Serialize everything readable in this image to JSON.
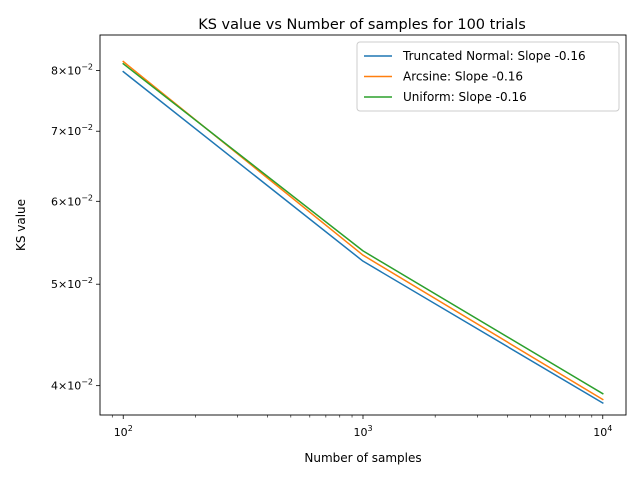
{
  "chart_data": {
    "type": "line",
    "title": "KS value vs Number of samples for 100 trials",
    "xlabel": "Number of samples",
    "ylabel": "KS value",
    "xscale": "log",
    "yscale": "log",
    "xlim": [
      80,
      12500
    ],
    "ylim": [
      0.0375,
      0.0865
    ],
    "x": [
      100,
      1000,
      10000
    ],
    "x_ticks": [
      {
        "value": 100,
        "base": "10",
        "exp": "2"
      },
      {
        "value": 1000,
        "base": "10",
        "exp": "3"
      },
      {
        "value": 10000,
        "base": "10",
        "exp": "4"
      }
    ],
    "y_ticks": [
      {
        "value": 0.04,
        "mant": "4",
        "base": "10",
        "exp": "−2"
      },
      {
        "value": 0.05,
        "mant": "5",
        "base": "10",
        "exp": "−2"
      },
      {
        "value": 0.06,
        "mant": "6",
        "base": "10",
        "exp": "−2"
      },
      {
        "value": 0.07,
        "mant": "7",
        "base": "10",
        "exp": "−2"
      },
      {
        "value": 0.08,
        "mant": "8",
        "base": "10",
        "exp": "−2"
      }
    ],
    "grid": false,
    "legend_position": "top-right",
    "series": [
      {
        "name": "Truncated Normal: Slope -0.16",
        "color": "#1f77b4",
        "values": [
          0.0798,
          0.0526,
          0.0385
        ]
      },
      {
        "name": "Arcsine: Slope -0.16",
        "color": "#ff7f0e",
        "values": [
          0.0816,
          0.0533,
          0.0388
        ]
      },
      {
        "name": "Uniform: Slope -0.16",
        "color": "#2ca02c",
        "values": [
          0.0812,
          0.0538,
          0.0393
        ]
      }
    ]
  }
}
